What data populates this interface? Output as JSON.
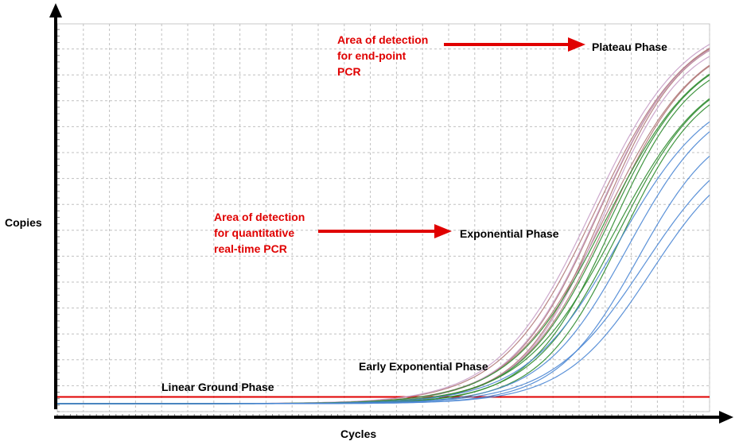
{
  "chart_data": {
    "type": "line",
    "title": "",
    "xlabel": "Cycles",
    "ylabel": "Copies",
    "grid": true,
    "threshold": {
      "y": 0.035
    },
    "axes": {
      "x": [
        0,
        1
      ],
      "y": [
        0,
        1
      ]
    },
    "series_groups": [
      {
        "color": "#b07878",
        "count": 5,
        "midpoints": [
          0.825,
          0.83,
          0.835,
          0.84,
          0.845
        ],
        "plateaus": [
          0.985,
          0.975,
          0.965,
          0.955,
          0.945
        ]
      },
      {
        "color": "#c8a0c8",
        "count": 3,
        "midpoints": [
          0.82,
          0.828,
          0.836
        ],
        "plateaus": [
          0.99,
          0.97,
          0.95
        ]
      },
      {
        "color": "#2e8b2e",
        "count": 6,
        "midpoints": [
          0.84,
          0.845,
          0.85,
          0.855,
          0.86,
          0.865
        ],
        "plateaus": [
          0.93,
          0.92,
          0.9,
          0.88,
          0.87,
          0.85
        ]
      },
      {
        "color": "#4a86d4",
        "count": 5,
        "midpoints": [
          0.86,
          0.875,
          0.89,
          0.9,
          0.91
        ],
        "plateaus": [
          0.82,
          0.8,
          0.74,
          0.71,
          0.67
        ]
      }
    ],
    "annotations": [
      {
        "id": "plateau",
        "text": [
          "Plateau Phase"
        ],
        "color": "#000000"
      },
      {
        "id": "exponential",
        "text": [
          "Exponential Phase"
        ],
        "color": "#000000"
      },
      {
        "id": "early",
        "text": [
          "Early Exponential Phase"
        ],
        "color": "#000000"
      },
      {
        "id": "linear",
        "text": [
          "Linear Ground Phase"
        ],
        "color": "#000000"
      },
      {
        "id": "endpoint",
        "text": [
          "Area of detection",
          "for end-point",
          "PCR"
        ],
        "color": "#e00000"
      },
      {
        "id": "quant",
        "text": [
          "Area of detection",
          "for quantitative",
          "real-time PCR"
        ],
        "color": "#e00000"
      }
    ]
  }
}
